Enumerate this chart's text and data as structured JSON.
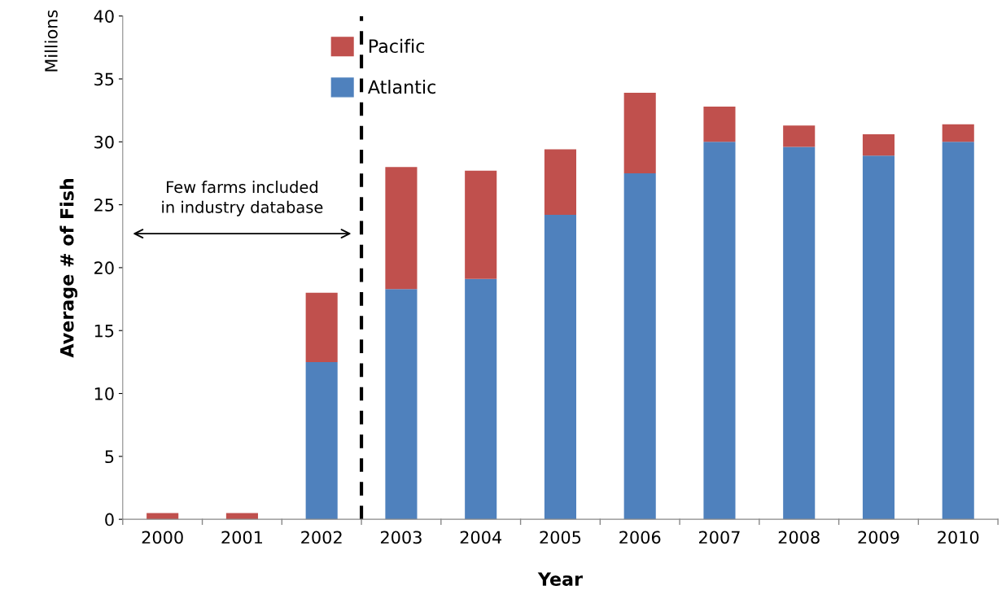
{
  "chart_data": {
    "type": "bar",
    "stacked": true,
    "xlabel": "Year",
    "ylabel": "Average # of Fish",
    "categories": [
      "2000",
      "2001",
      "2002",
      "2003",
      "2004",
      "2005",
      "2006",
      "2007",
      "2008",
      "2009",
      "2010"
    ],
    "series": [
      {
        "name": "Atlantic",
        "color": "#4f81bd",
        "values": [
          0,
          0,
          12.5,
          18.3,
          19.1,
          24.2,
          27.5,
          30.0,
          29.6,
          28.9,
          30.0
        ]
      },
      {
        "name": "Pacific",
        "color": "#c0504d",
        "values": [
          0.5,
          0.5,
          5.5,
          9.7,
          8.6,
          5.2,
          6.4,
          2.8,
          1.7,
          1.7,
          1.4
        ]
      }
    ],
    "ylim": [
      0,
      40
    ],
    "yticks": [
      0,
      5,
      10,
      15,
      20,
      25,
      30,
      35,
      40
    ],
    "annotations": [
      "Millions",
      "Few farms included\nin industry database"
    ],
    "grid": false,
    "legend": "top left"
  }
}
